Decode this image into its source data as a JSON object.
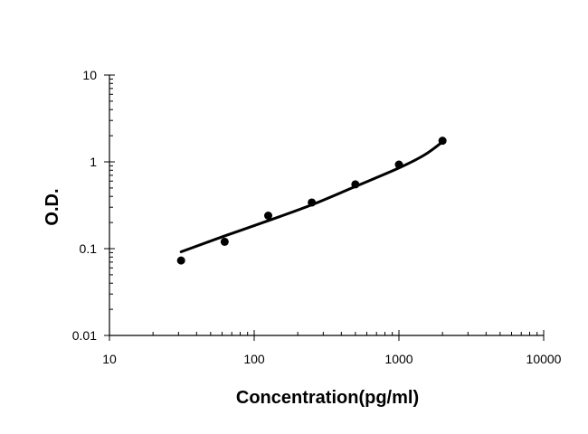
{
  "chart_data": {
    "type": "scatter",
    "title": "",
    "xlabel": "Concentration(pg/ml)",
    "ylabel": "O.D.",
    "x_scale": "log",
    "y_scale": "log",
    "xlim": [
      10,
      10000
    ],
    "ylim": [
      0.01,
      10
    ],
    "x_ticks": [
      "10",
      "100",
      "1000",
      "10000"
    ],
    "y_ticks": [
      "0.01",
      "0.1",
      "1",
      "10"
    ],
    "grid": false,
    "legend": "none",
    "colors": {
      "points": "#000000",
      "curve": "#000000",
      "axis": "#000000"
    },
    "series": [
      {
        "x": [
          31.25,
          62.5,
          125,
          250,
          500,
          1000,
          2000
        ],
        "y": [
          0.073,
          0.12,
          0.24,
          0.34,
          0.55,
          0.93,
          1.75
        ]
      }
    ],
    "fit_curve": {
      "x": [
        31.25,
        62.5,
        125,
        250,
        500,
        1000,
        1500,
        2000
      ],
      "y": [
        0.092,
        0.14,
        0.21,
        0.32,
        0.52,
        0.85,
        1.2,
        1.7
      ]
    }
  }
}
